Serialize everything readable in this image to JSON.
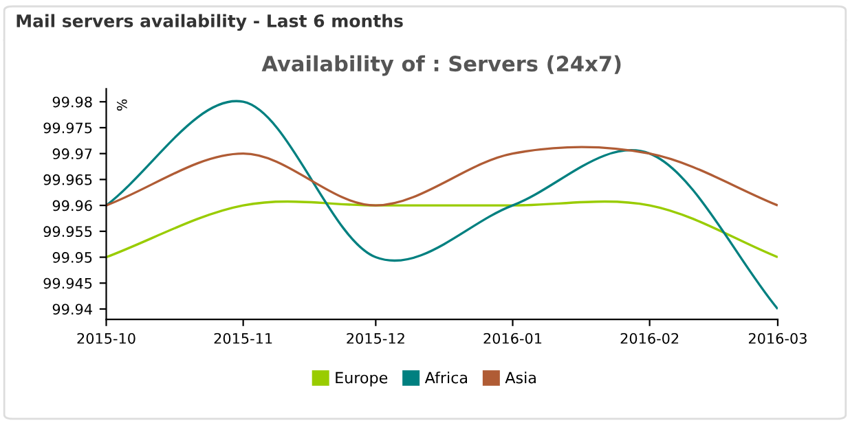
{
  "chart_data": {
    "type": "line",
    "title": "Availability of : Servers (24x7)",
    "annotations": [
      "Mail servers availability - Last 6 months"
    ],
    "x": [
      "2015-10",
      "2015-11",
      "2015-12",
      "2016-01",
      "2016-02",
      "2016-03"
    ],
    "series": [
      {
        "name": "Europe",
        "color": "#99cc00",
        "values": [
          99.95,
          99.96,
          99.96,
          99.96,
          99.96,
          99.95
        ]
      },
      {
        "name": "Africa",
        "color": "#008080",
        "values": [
          99.96,
          99.98,
          99.95,
          99.96,
          99.97,
          99.94
        ]
      },
      {
        "name": "Asia",
        "color": "#b05c35",
        "values": [
          99.96,
          99.97,
          99.96,
          99.97,
          99.97,
          99.96
        ]
      }
    ],
    "ylabel": "%",
    "xlim": [
      "2015-10",
      "2016-03"
    ],
    "ylim": [
      99.938,
      99.9825
    ],
    "xticks": [
      {
        "value": "2015-10",
        "label": "2015-10"
      },
      {
        "value": "2015-11",
        "label": "2015-11"
      },
      {
        "value": "2015-12",
        "label": "2015-12"
      },
      {
        "value": "2016-01",
        "label": "2016-01"
      },
      {
        "value": "2016-02",
        "label": "2016-02"
      },
      {
        "value": "2016-03",
        "label": "2016-03"
      }
    ],
    "yticks": [
      99.94,
      99.945,
      99.95,
      99.955,
      99.96,
      99.965,
      99.97,
      99.975,
      99.98
    ],
    "grid": false,
    "legend": "bottom",
    "marker": "none",
    "line_style": "solid"
  }
}
